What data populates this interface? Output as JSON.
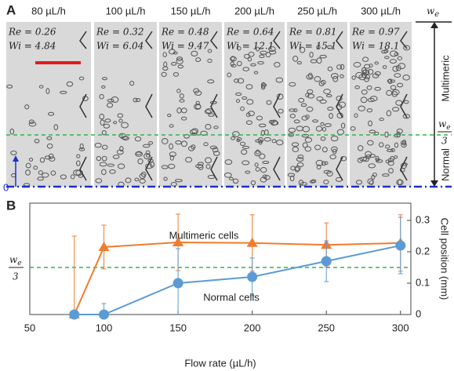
{
  "panel_a": {
    "letter": "A",
    "columns": [
      {
        "flow": "80 µL/h",
        "re": "Re = 0.26",
        "wi": "Wi = 4.84"
      },
      {
        "flow": "100 µL/h",
        "re": "Re = 0.32",
        "wi": "Wi = 6.04"
      },
      {
        "flow": "150 µL/h",
        "re": "Re = 0.48",
        "wi": "Wi = 9.47"
      },
      {
        "flow": "200 µL/h",
        "re": "Re = 0.64",
        "wi": "Wi = 12.1"
      },
      {
        "flow": "250 µL/h",
        "re": "Re = 0.81",
        "wi": "Wi = 15.1"
      },
      {
        "flow": "300 µL/h",
        "re": "Re = 0.97",
        "wi": "Wi = 18.1"
      }
    ],
    "width_label": {
      "symbol": "w",
      "subscript": "e"
    },
    "third_label": {
      "symbol": "w",
      "subscript": "e",
      "denominator": "3"
    },
    "zero_label": "0",
    "top_region": "Multimeric",
    "bottom_region": "Normal"
  },
  "chart_data": {
    "type": "line",
    "letter": "B",
    "x_label": "Flow rate (µL/h)",
    "y_label": "Cell position (mm)",
    "x": [
      80,
      100,
      150,
      200,
      250,
      300
    ],
    "xlim": [
      50,
      307
    ],
    "xticks": [
      50,
      100,
      150,
      200,
      250,
      300
    ],
    "ylim": [
      0,
      0.355
    ],
    "yticks": [
      0,
      0.1,
      0.2,
      0.3
    ],
    "reference_line": {
      "value": 0.15,
      "symbol": "w",
      "subscript": "e",
      "denominator": "3",
      "color": "#2db84a"
    },
    "series": [
      {
        "name": "Multimeric cells",
        "color": "#f07d2c",
        "marker": "triangle",
        "values": [
          0,
          0.215,
          0.23,
          0.228,
          0.222,
          0.228
        ],
        "errors": [
          0.25,
          0.07,
          0.09,
          0.09,
          0.07,
          0.09
        ]
      },
      {
        "name": "Normal cells",
        "color": "#5b9bd5",
        "marker": "circle",
        "values": [
          0,
          0,
          0.1,
          0.12,
          0.17,
          0.22
        ],
        "errors": [
          0,
          0.035,
          0.11,
          0.06,
          0.065,
          0.09
        ]
      }
    ]
  }
}
